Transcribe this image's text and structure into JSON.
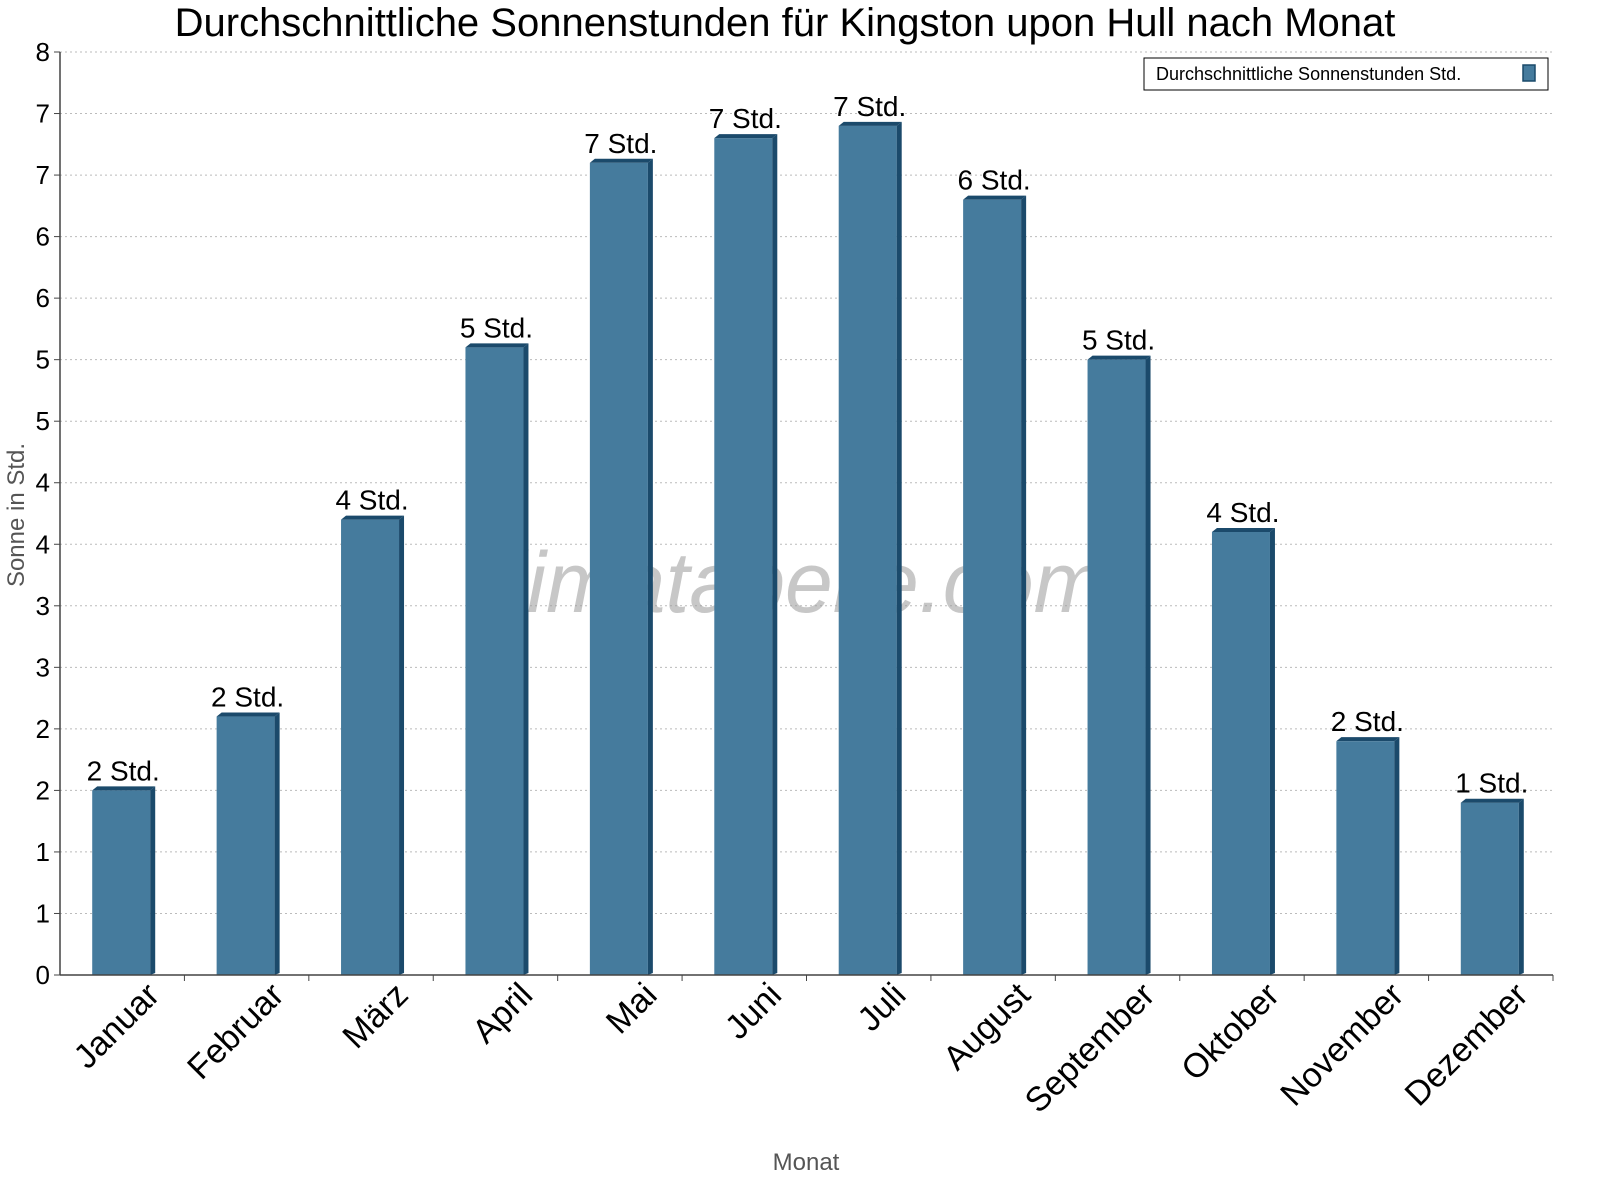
{
  "chart_data": {
    "type": "bar",
    "title": "Durchschnittliche Sonnenstunden für Kingston upon Hull nach Monat",
    "xlabel": "Monat",
    "ylabel": "Sonne in Std.",
    "categories": [
      "Januar",
      "Februar",
      "März",
      "April",
      "Mai",
      "Juni",
      "Juli",
      "August",
      "September",
      "Oktober",
      "November",
      "Dezember"
    ],
    "series": [
      {
        "name": "Durchschnittliche Sonnenstunden Std.",
        "values": [
          1.5,
          2.1,
          3.7,
          5.1,
          6.6,
          6.8,
          6.9,
          6.3,
          5.0,
          3.6,
          1.9,
          1.4
        ],
        "color": "#457b9d"
      }
    ],
    "data_labels": [
      "2 Std.",
      "2 Std.",
      "4 Std.",
      "5 Std.",
      "7 Std.",
      "7 Std.",
      "7 Std.",
      "6 Std.",
      "5 Std.",
      "4 Std.",
      "2 Std.",
      "1 Std."
    ],
    "ylim": [
      0,
      7.5
    ],
    "ytick_labels": [
      "0",
      "1",
      "1",
      "2",
      "2",
      "3",
      "3",
      "4",
      "4",
      "5",
      "5",
      "6",
      "6",
      "7",
      "7",
      "8"
    ],
    "grid": true,
    "legend_position": "top-right",
    "watermark": "klimatabelle.com"
  }
}
